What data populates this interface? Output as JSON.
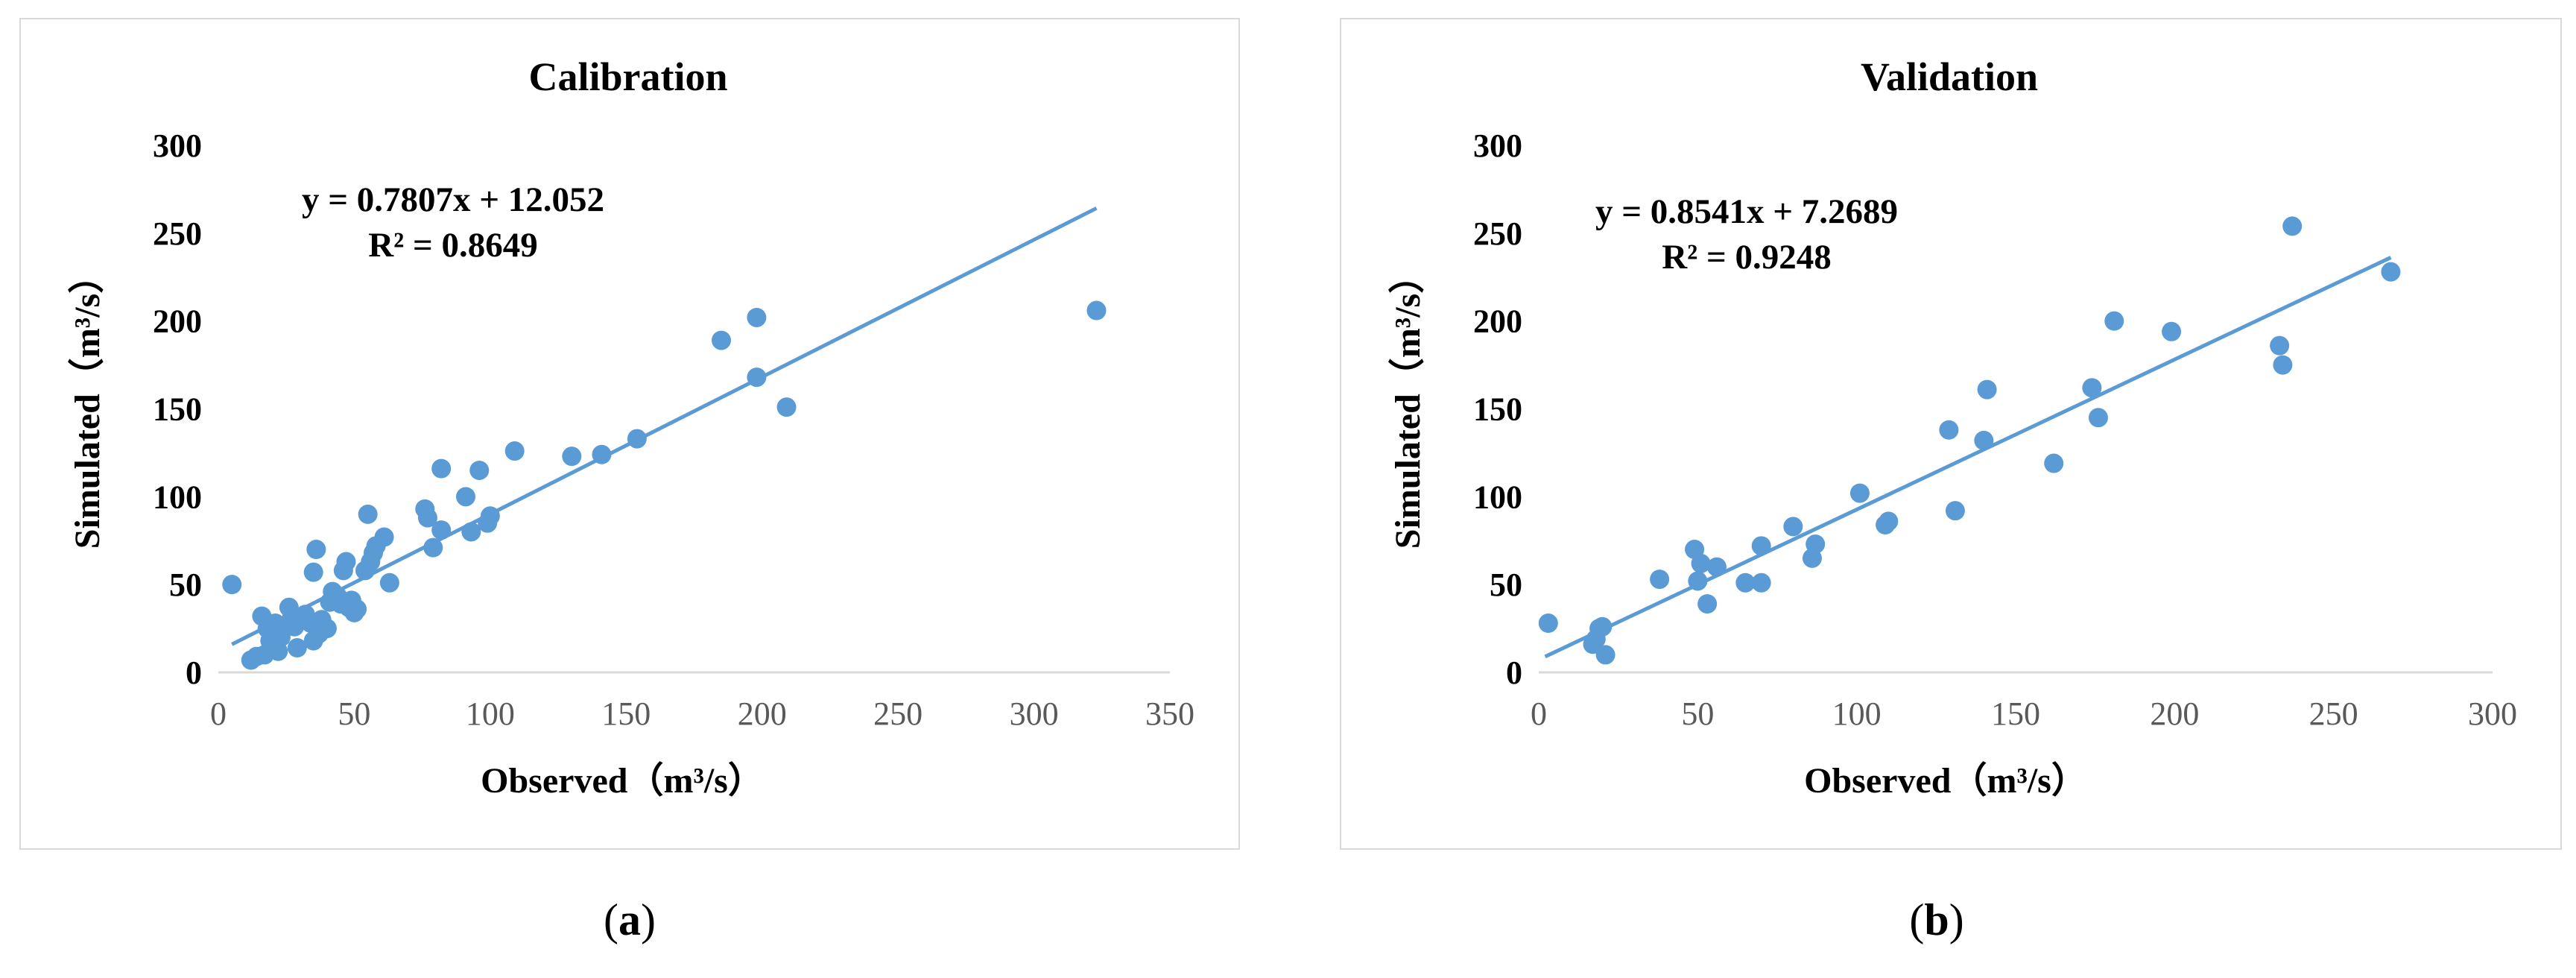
{
  "panels": [
    {
      "caption_letter": "a",
      "chart_data": {
        "type": "scatter",
        "title": "Calibration",
        "xlabel": "Observed（m³/s）",
        "ylabel": "Simulated（m³/s）",
        "xlim": [
          0,
          350
        ],
        "ylim": [
          0,
          300
        ],
        "xticks": [
          0,
          50,
          100,
          150,
          200,
          250,
          300,
          350
        ],
        "yticks": [
          0,
          50,
          100,
          150,
          200,
          250,
          300
        ],
        "grid": false,
        "marker_color": "#5b9bd5",
        "trendline": {
          "slope": 0.7807,
          "intercept": 12.052,
          "x_range": [
            5,
            323
          ],
          "color": "#5b9bd5"
        },
        "annotations": [
          "y = 0.7807x + 12.052",
          "R² = 0.8649"
        ],
        "points": [
          [
            5,
            50
          ],
          [
            12,
            7
          ],
          [
            14,
            9
          ],
          [
            16,
            32
          ],
          [
            17,
            10
          ],
          [
            18,
            25
          ],
          [
            19,
            18
          ],
          [
            20,
            15
          ],
          [
            21,
            28
          ],
          [
            22,
            12
          ],
          [
            23,
            20
          ],
          [
            24,
            25
          ],
          [
            26,
            37
          ],
          [
            27,
            31
          ],
          [
            28,
            26
          ],
          [
            29,
            14
          ],
          [
            32,
            33
          ],
          [
            34,
            28
          ],
          [
            35,
            57
          ],
          [
            35,
            18
          ],
          [
            36,
            70
          ],
          [
            37,
            22
          ],
          [
            38,
            30
          ],
          [
            40,
            25
          ],
          [
            41,
            40
          ],
          [
            42,
            46
          ],
          [
            44,
            43
          ],
          [
            45,
            39
          ],
          [
            46,
            58
          ],
          [
            47,
            63
          ],
          [
            48,
            37
          ],
          [
            49,
            41
          ],
          [
            50,
            34
          ],
          [
            51,
            36
          ],
          [
            54,
            58
          ],
          [
            55,
            90
          ],
          [
            56,
            63
          ],
          [
            57,
            68
          ],
          [
            58,
            72
          ],
          [
            61,
            77
          ],
          [
            63,
            51
          ],
          [
            76,
            93
          ],
          [
            77,
            88
          ],
          [
            79,
            71
          ],
          [
            82,
            116
          ],
          [
            82,
            81
          ],
          [
            91,
            100
          ],
          [
            93,
            80
          ],
          [
            96,
            115
          ],
          [
            99,
            85
          ],
          [
            100,
            89
          ],
          [
            109,
            126
          ],
          [
            130,
            123
          ],
          [
            141,
            124
          ],
          [
            154,
            133
          ],
          [
            185,
            189
          ],
          [
            198,
            202
          ],
          [
            198,
            168
          ],
          [
            209,
            151
          ],
          [
            323,
            206
          ]
        ]
      }
    },
    {
      "caption_letter": "b",
      "chart_data": {
        "type": "scatter",
        "title": "Validation",
        "xlabel": "Observed（m³/s）",
        "ylabel": "Simulated（m³/s）",
        "xlim": [
          0,
          300
        ],
        "ylim": [
          0,
          300
        ],
        "xticks": [
          0,
          50,
          100,
          150,
          200,
          250,
          300
        ],
        "yticks": [
          0,
          50,
          100,
          150,
          200,
          250,
          300
        ],
        "grid": false,
        "marker_color": "#5b9bd5",
        "trendline": {
          "slope": 0.8541,
          "intercept": 7.2689,
          "x_range": [
            2,
            268
          ],
          "color": "#5b9bd5"
        },
        "annotations": [
          "y = 0.8541x + 7.2689",
          "R² = 0.9248"
        ],
        "points": [
          [
            3,
            28
          ],
          [
            17,
            16
          ],
          [
            18,
            19
          ],
          [
            19,
            25
          ],
          [
            20,
            26
          ],
          [
            21,
            10
          ],
          [
            38,
            53
          ],
          [
            49,
            70
          ],
          [
            50,
            52
          ],
          [
            51,
            62
          ],
          [
            53,
            39
          ],
          [
            56,
            60
          ],
          [
            65,
            51
          ],
          [
            70,
            51
          ],
          [
            70,
            72
          ],
          [
            80,
            83
          ],
          [
            86,
            65
          ],
          [
            87,
            73
          ],
          [
            101,
            102
          ],
          [
            109,
            84
          ],
          [
            110,
            86
          ],
          [
            129,
            138
          ],
          [
            131,
            92
          ],
          [
            140,
            132
          ],
          [
            141,
            161
          ],
          [
            162,
            119
          ],
          [
            174,
            162
          ],
          [
            176,
            145
          ],
          [
            181,
            200
          ],
          [
            199,
            194
          ],
          [
            233,
            186
          ],
          [
            234,
            175
          ],
          [
            237,
            254
          ],
          [
            268,
            228
          ]
        ]
      }
    }
  ]
}
